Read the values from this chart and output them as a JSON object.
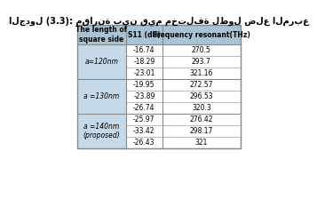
{
  "title": "الجدول (3.3): مقارنة بين قيم مختلفة لطول ضلع المربع",
  "header": [
    "The length of\nsquare side",
    "S11 (dB)",
    "Frequency resonant(THz)"
  ],
  "groups": [
    {
      "label": "a=120nm",
      "rows": [
        [
          "-16.74",
          "270.5"
        ],
        [
          "-18.29",
          "293.7"
        ],
        [
          "-23.01",
          "321.16"
        ]
      ]
    },
    {
      "label": "a =130nm",
      "rows": [
        [
          "-19.95",
          "272.57"
        ],
        [
          "-23.89",
          "296.53"
        ],
        [
          "-26.74",
          "320.3"
        ]
      ]
    },
    {
      "label": "a =140nm\n(proposed)",
      "rows": [
        [
          "-25.97",
          "276.42"
        ],
        [
          "-33.42",
          "298.17"
        ],
        [
          "-26.43",
          "321"
        ]
      ]
    }
  ],
  "header_bg": "#a8c4d4",
  "row_bg_light": "#c5d9e8",
  "row_bg_white": "#ffffff",
  "border_color": "#888888",
  "text_color": "#000000",
  "title_color": "#000000"
}
